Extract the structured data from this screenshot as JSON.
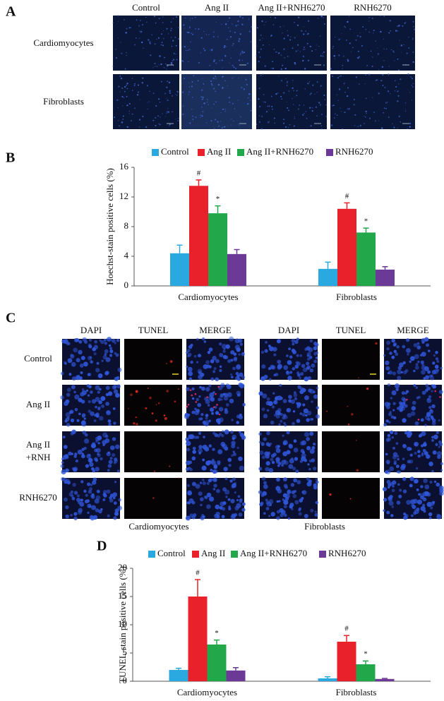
{
  "panel_labels": [
    "A",
    "B",
    "C",
    "D"
  ],
  "panel_a": {
    "columns": [
      "Control",
      "Ang II",
      "Ang II+RNH6270",
      "RNH6270"
    ],
    "rows": [
      "Cardiomyocytes",
      "Fibroblasts"
    ]
  },
  "panel_c": {
    "columns": [
      "DAPI",
      "TUNEL",
      "MERGE"
    ],
    "rows": [
      [
        "Control"
      ],
      [
        "Ang II"
      ],
      [
        "Ang II",
        "+RNH"
      ],
      [
        "RNH6270"
      ]
    ],
    "captions": [
      "Cardiomyocytes",
      "Fibroblasts"
    ]
  },
  "chart_data": [
    {
      "type": "bar",
      "y_label": "Hoechst-stain positive cells (%)",
      "categories": [
        "Cardiomyocytes",
        "Fibroblasts"
      ],
      "ylim": [
        0,
        16
      ],
      "yticks": [
        0,
        4,
        8,
        12,
        16
      ],
      "series": [
        {
          "name": "Control",
          "color": "#29a9e0",
          "values": [
            4.4,
            2.3
          ],
          "errors": [
            1.1,
            0.9
          ]
        },
        {
          "name": "Ang II",
          "color": "#e8212a",
          "values": [
            13.5,
            10.4
          ],
          "errors": [
            0.8,
            0.8
          ],
          "significance": [
            "#",
            "#"
          ]
        },
        {
          "name": "Ang II+RNH6270",
          "color": "#22a84a",
          "values": [
            9.8,
            7.2
          ],
          "errors": [
            1.0,
            0.6
          ],
          "significance": [
            "*",
            "*"
          ]
        },
        {
          "name": "RNH6270",
          "color": "#6b3a97",
          "values": [
            4.3,
            2.2
          ],
          "errors": [
            0.6,
            0.4
          ]
        }
      ]
    },
    {
      "type": "bar",
      "y_label": "TUNEL-stain positive cells (%)",
      "categories": [
        "Cardiomyocytes",
        "Fibroblasts"
      ],
      "ylim": [
        0,
        20
      ],
      "yticks": [
        0,
        5,
        10,
        15,
        20
      ],
      "series": [
        {
          "name": "Control",
          "color": "#29a9e0",
          "values": [
            2.0,
            0.5
          ],
          "errors": [
            0.3,
            0.3
          ]
        },
        {
          "name": "Ang II",
          "color": "#e8212a",
          "values": [
            15.0,
            7.0
          ],
          "errors": [
            3.0,
            1.1
          ],
          "significance": [
            "#",
            "#"
          ]
        },
        {
          "name": "Ang II+RNH6270",
          "color": "#22a84a",
          "values": [
            6.5,
            3.0
          ],
          "errors": [
            0.8,
            0.6
          ],
          "significance": [
            "*",
            "*"
          ]
        },
        {
          "name": "RNH6270",
          "color": "#6b3a97",
          "values": [
            1.9,
            0.4
          ],
          "errors": [
            0.5,
            0.1
          ]
        }
      ]
    }
  ]
}
